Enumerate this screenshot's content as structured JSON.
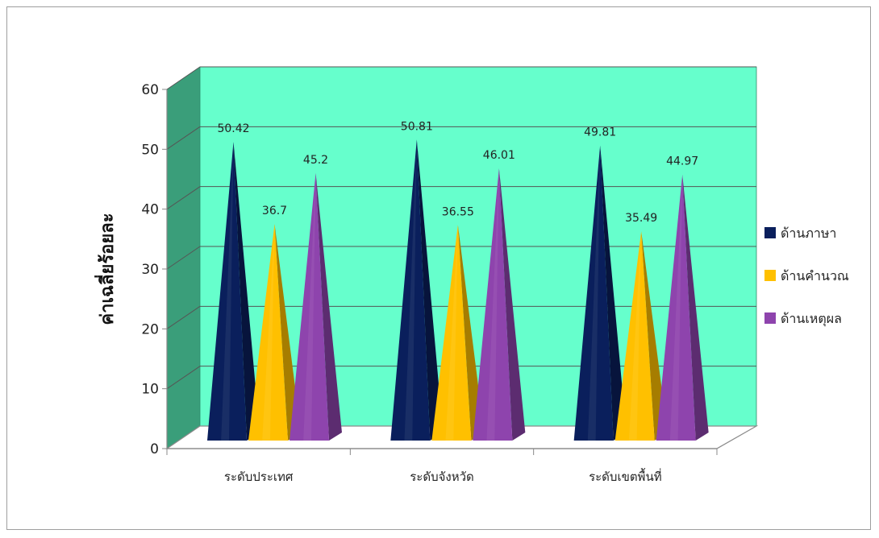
{
  "chart_data": {
    "type": "bar",
    "style": "3d-pyramid",
    "categories": [
      "ระดับประเทศ",
      "ระดับจังหวัด",
      "ระดับเขตพื้นที่"
    ],
    "series": [
      {
        "name": "ด้านภาษา",
        "values": [
          50.42,
          50.81,
          49.81
        ],
        "color": "#0a1f5c"
      },
      {
        "name": "ด้านคำนวณ",
        "values": [
          36.7,
          36.55,
          35.49
        ],
        "color": "#ffc000"
      },
      {
        "name": "ด้านเหตุผล",
        "values": [
          45.2,
          46.01,
          44.97
        ],
        "color": "#8e44ad"
      }
    ],
    "data_labels": [
      [
        "50.42",
        "36.7",
        "45.2"
      ],
      [
        "50.81",
        "36.55",
        "46.01"
      ],
      [
        "49.81",
        "35.49",
        "44.97"
      ]
    ],
    "ylabel": "ค่าเฉลี่ยร้อยละ",
    "xlabel": "",
    "ylim": [
      0,
      60
    ],
    "yticks": [
      "0",
      "10",
      "20",
      "30",
      "40",
      "50",
      "60"
    ],
    "grid": true,
    "legend_position": "right",
    "colors": {
      "back_wall": "#66ffcc",
      "side_wall": "#3a9e7a",
      "grid": "#555555"
    }
  }
}
